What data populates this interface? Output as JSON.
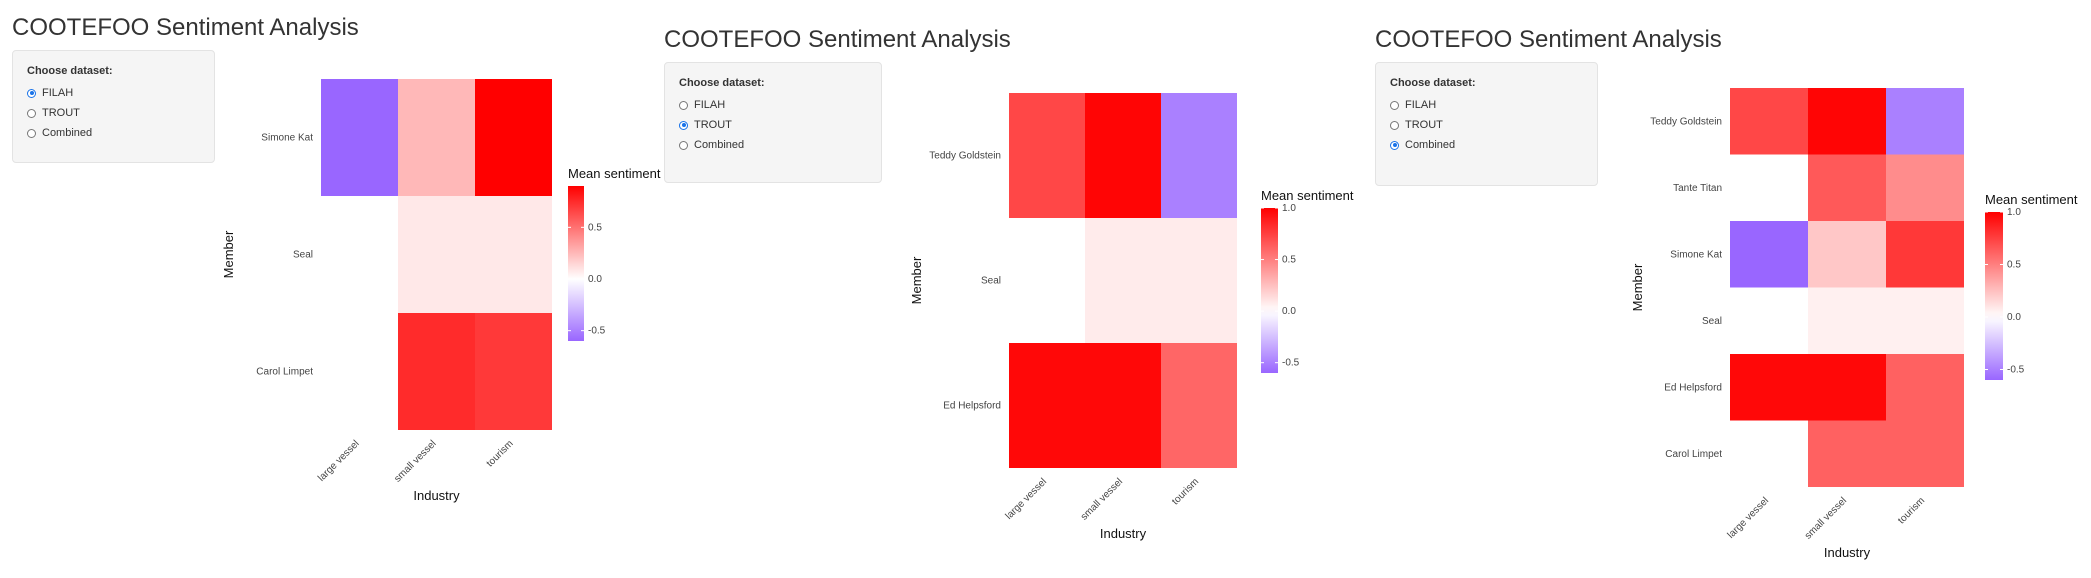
{
  "panels": [
    {
      "title": "COOTEFOO Sentiment Analysis",
      "control_label": "Choose dataset:",
      "options": [
        "FILAH",
        "TROUT",
        "Combined"
      ],
      "selected": "FILAH",
      "chart_data": {
        "type": "heatmap",
        "xlabel": "Industry",
        "ylabel": "Member",
        "x": [
          "large vessel",
          "small vessel",
          "tourism"
        ],
        "y": [
          "Simone Kat",
          "Seal",
          "Carol Limpet"
        ],
        "values": [
          [
            -0.6,
            0.25,
            0.9
          ],
          [
            null,
            0.08,
            0.08
          ],
          [
            null,
            0.75,
            0.7
          ]
        ],
        "legend_title": "Mean sentiment",
        "color_range": [
          -0.6,
          0.9
        ],
        "color_ticks": [
          "0.5",
          "0.0",
          "-0.5"
        ],
        "color_tick_values": [
          0.5,
          0.0,
          -0.5
        ],
        "colors": {
          "low": "#9966ff",
          "mid": "#ffffff",
          "high": "#ff0000"
        }
      }
    },
    {
      "title": "COOTEFOO Sentiment Analysis",
      "control_label": "Choose dataset:",
      "options": [
        "FILAH",
        "TROUT",
        "Combined"
      ],
      "selected": "TROUT",
      "chart_data": {
        "type": "heatmap",
        "xlabel": "Industry",
        "ylabel": "Member",
        "x": [
          "large vessel",
          "small vessel",
          "tourism"
        ],
        "y": [
          "Teddy Goldstein",
          "Seal",
          "Ed Helpsford"
        ],
        "values": [
          [
            0.72,
            0.98,
            -0.5
          ],
          [
            null,
            0.08,
            0.08
          ],
          [
            0.97,
            0.97,
            0.6
          ]
        ],
        "legend_title": "Mean sentiment",
        "color_range": [
          -0.6,
          1.0
        ],
        "color_ticks": [
          "1.0",
          "0.5",
          "0.0",
          "-0.5"
        ],
        "color_tick_values": [
          1.0,
          0.5,
          0.0,
          -0.5
        ],
        "colors": {
          "low": "#9966ff",
          "mid": "#ffffff",
          "high": "#ff0000"
        }
      }
    },
    {
      "title": "COOTEFOO Sentiment Analysis",
      "control_label": "Choose dataset:",
      "options": [
        "FILAH",
        "TROUT",
        "Combined"
      ],
      "selected": "Combined",
      "chart_data": {
        "type": "heatmap",
        "xlabel": "Industry",
        "ylabel": "Member",
        "x": [
          "large vessel",
          "small vessel",
          "tourism"
        ],
        "y": [
          "Teddy Goldstein",
          "Tante Titan",
          "Simone Kat",
          "Seal",
          "Ed Helpsford",
          "Carol Limpet"
        ],
        "values": [
          [
            0.72,
            0.98,
            -0.5
          ],
          [
            null,
            0.65,
            0.45
          ],
          [
            -0.6,
            0.22,
            0.78
          ],
          [
            null,
            0.06,
            0.06
          ],
          [
            0.97,
            0.97,
            0.62
          ],
          [
            null,
            0.62,
            0.62
          ]
        ],
        "legend_title": "Mean sentiment",
        "color_range": [
          -0.6,
          1.0
        ],
        "color_ticks": [
          "1.0",
          "0.5",
          "0.0",
          "-0.5"
        ],
        "color_tick_values": [
          1.0,
          0.5,
          0.0,
          -0.5
        ],
        "colors": {
          "low": "#9966ff",
          "mid": "#ffffff",
          "high": "#ff0000"
        }
      }
    }
  ]
}
